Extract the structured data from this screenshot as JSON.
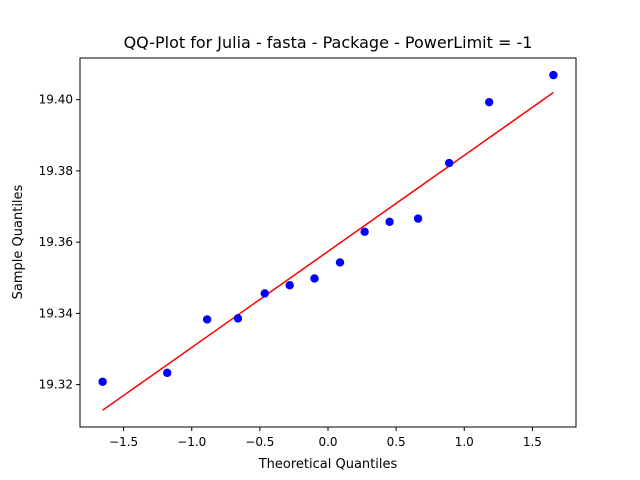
{
  "chart_data": {
    "type": "scatter",
    "title": "QQ-Plot for Julia - fasta - Package - PowerLimit = -1",
    "xlabel": "Theoretical Quantiles",
    "ylabel": "Sample Quantiles",
    "xlim": [
      -1.82,
      1.82
    ],
    "ylim": [
      19.3081,
      19.4117
    ],
    "xticks": [
      -1.5,
      -1.0,
      -0.5,
      0.0,
      0.5,
      1.0,
      1.5
    ],
    "xtick_labels": [
      "−1.5",
      "−1.0",
      "−0.5",
      "0.0",
      "0.5",
      "1.0",
      "1.5"
    ],
    "yticks": [
      19.32,
      19.34,
      19.36,
      19.38,
      19.4
    ],
    "ytick_labels": [
      "19.32",
      "19.34",
      "19.36",
      "19.38",
      "19.40"
    ],
    "grid": false,
    "series": [
      {
        "type": "scatter",
        "color": "#0000ff",
        "x": [
          -1.654,
          -1.18,
          -0.887,
          -0.661,
          -0.464,
          -0.281,
          -0.099,
          0.088,
          0.269,
          0.452,
          0.661,
          0.889,
          1.183,
          1.654
        ],
        "y": [
          19.3208,
          19.3233,
          19.3383,
          19.3386,
          19.3456,
          19.3479,
          19.3498,
          19.3543,
          19.3629,
          19.3657,
          19.3666,
          19.3822,
          19.3993,
          19.4069
        ]
      },
      {
        "type": "line",
        "color": "#ff0000",
        "x": [
          -1.654,
          1.654
        ],
        "y": [
          19.3128,
          19.402
        ]
      }
    ]
  }
}
